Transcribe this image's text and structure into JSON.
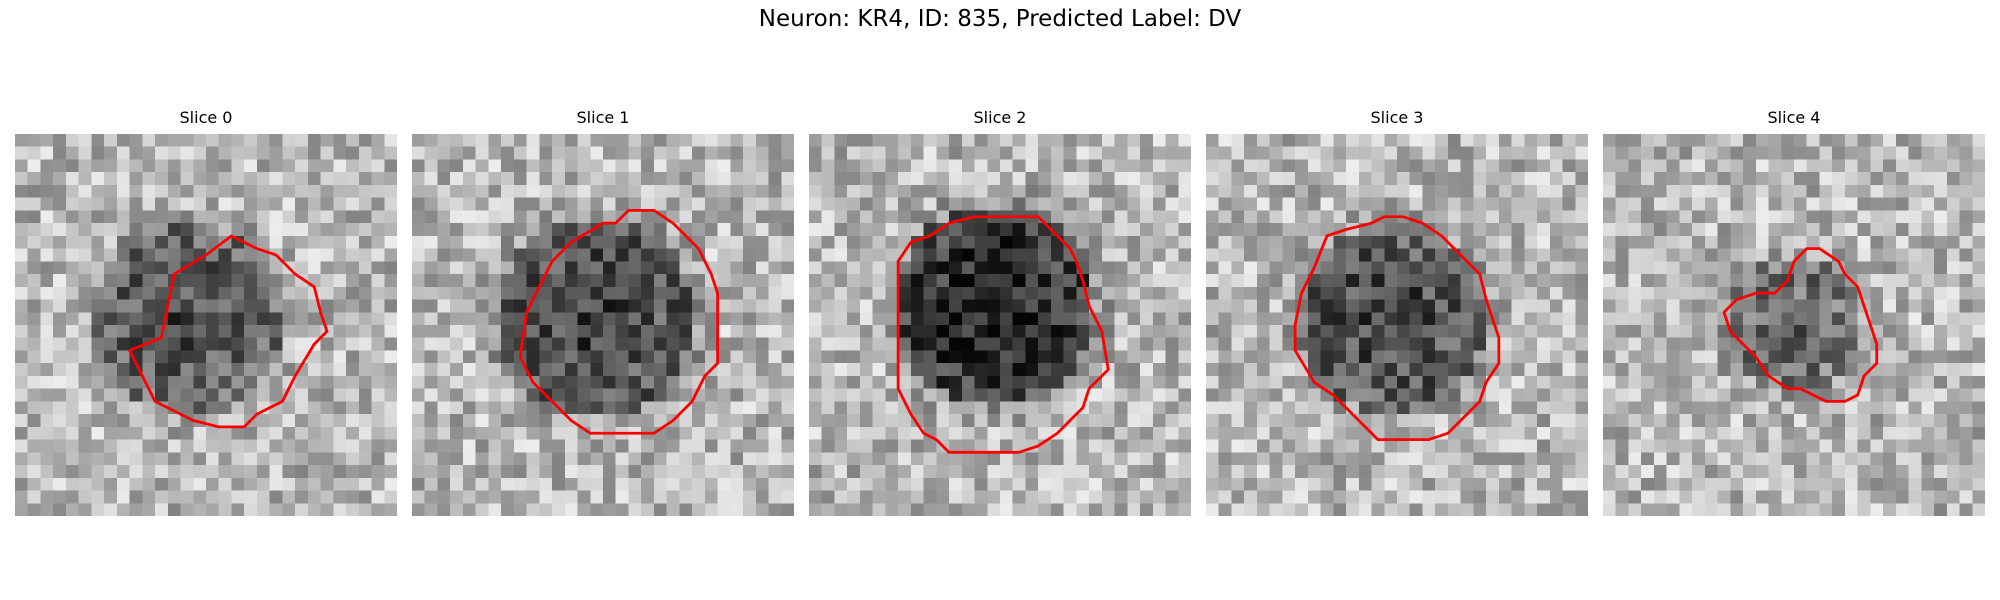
{
  "figure": {
    "title": "Neuron: KR4, ID: 835, Predicted Label: DV",
    "contour_color": "#ff0000"
  },
  "panels": [
    {
      "title": "Slice 0",
      "seed": 11,
      "blob": {
        "cx": 13.5,
        "cy": 14.5,
        "r": 7.5,
        "darkness": 0.45
      },
      "contour_shape": "slice0"
    },
    {
      "title": "Slice 1",
      "seed": 23,
      "blob": {
        "cx": 14.5,
        "cy": 14.5,
        "r": 8.0,
        "darkness": 0.5
      },
      "contour_shape": "slice1"
    },
    {
      "title": "Slice 2",
      "seed": 37,
      "blob": {
        "cx": 14.5,
        "cy": 13.5,
        "r": 8.0,
        "darkness": 0.65
      },
      "contour_shape": "slice2"
    },
    {
      "title": "Slice 3",
      "seed": 41,
      "blob": {
        "cx": 14.5,
        "cy": 14.5,
        "r": 7.5,
        "darkness": 0.5
      },
      "contour_shape": "slice3"
    },
    {
      "title": "Slice 4",
      "seed": 53,
      "blob": {
        "cx": 15.0,
        "cy": 15.0,
        "r": 5.5,
        "darkness": 0.35
      },
      "contour_shape": "slice4"
    }
  ]
}
